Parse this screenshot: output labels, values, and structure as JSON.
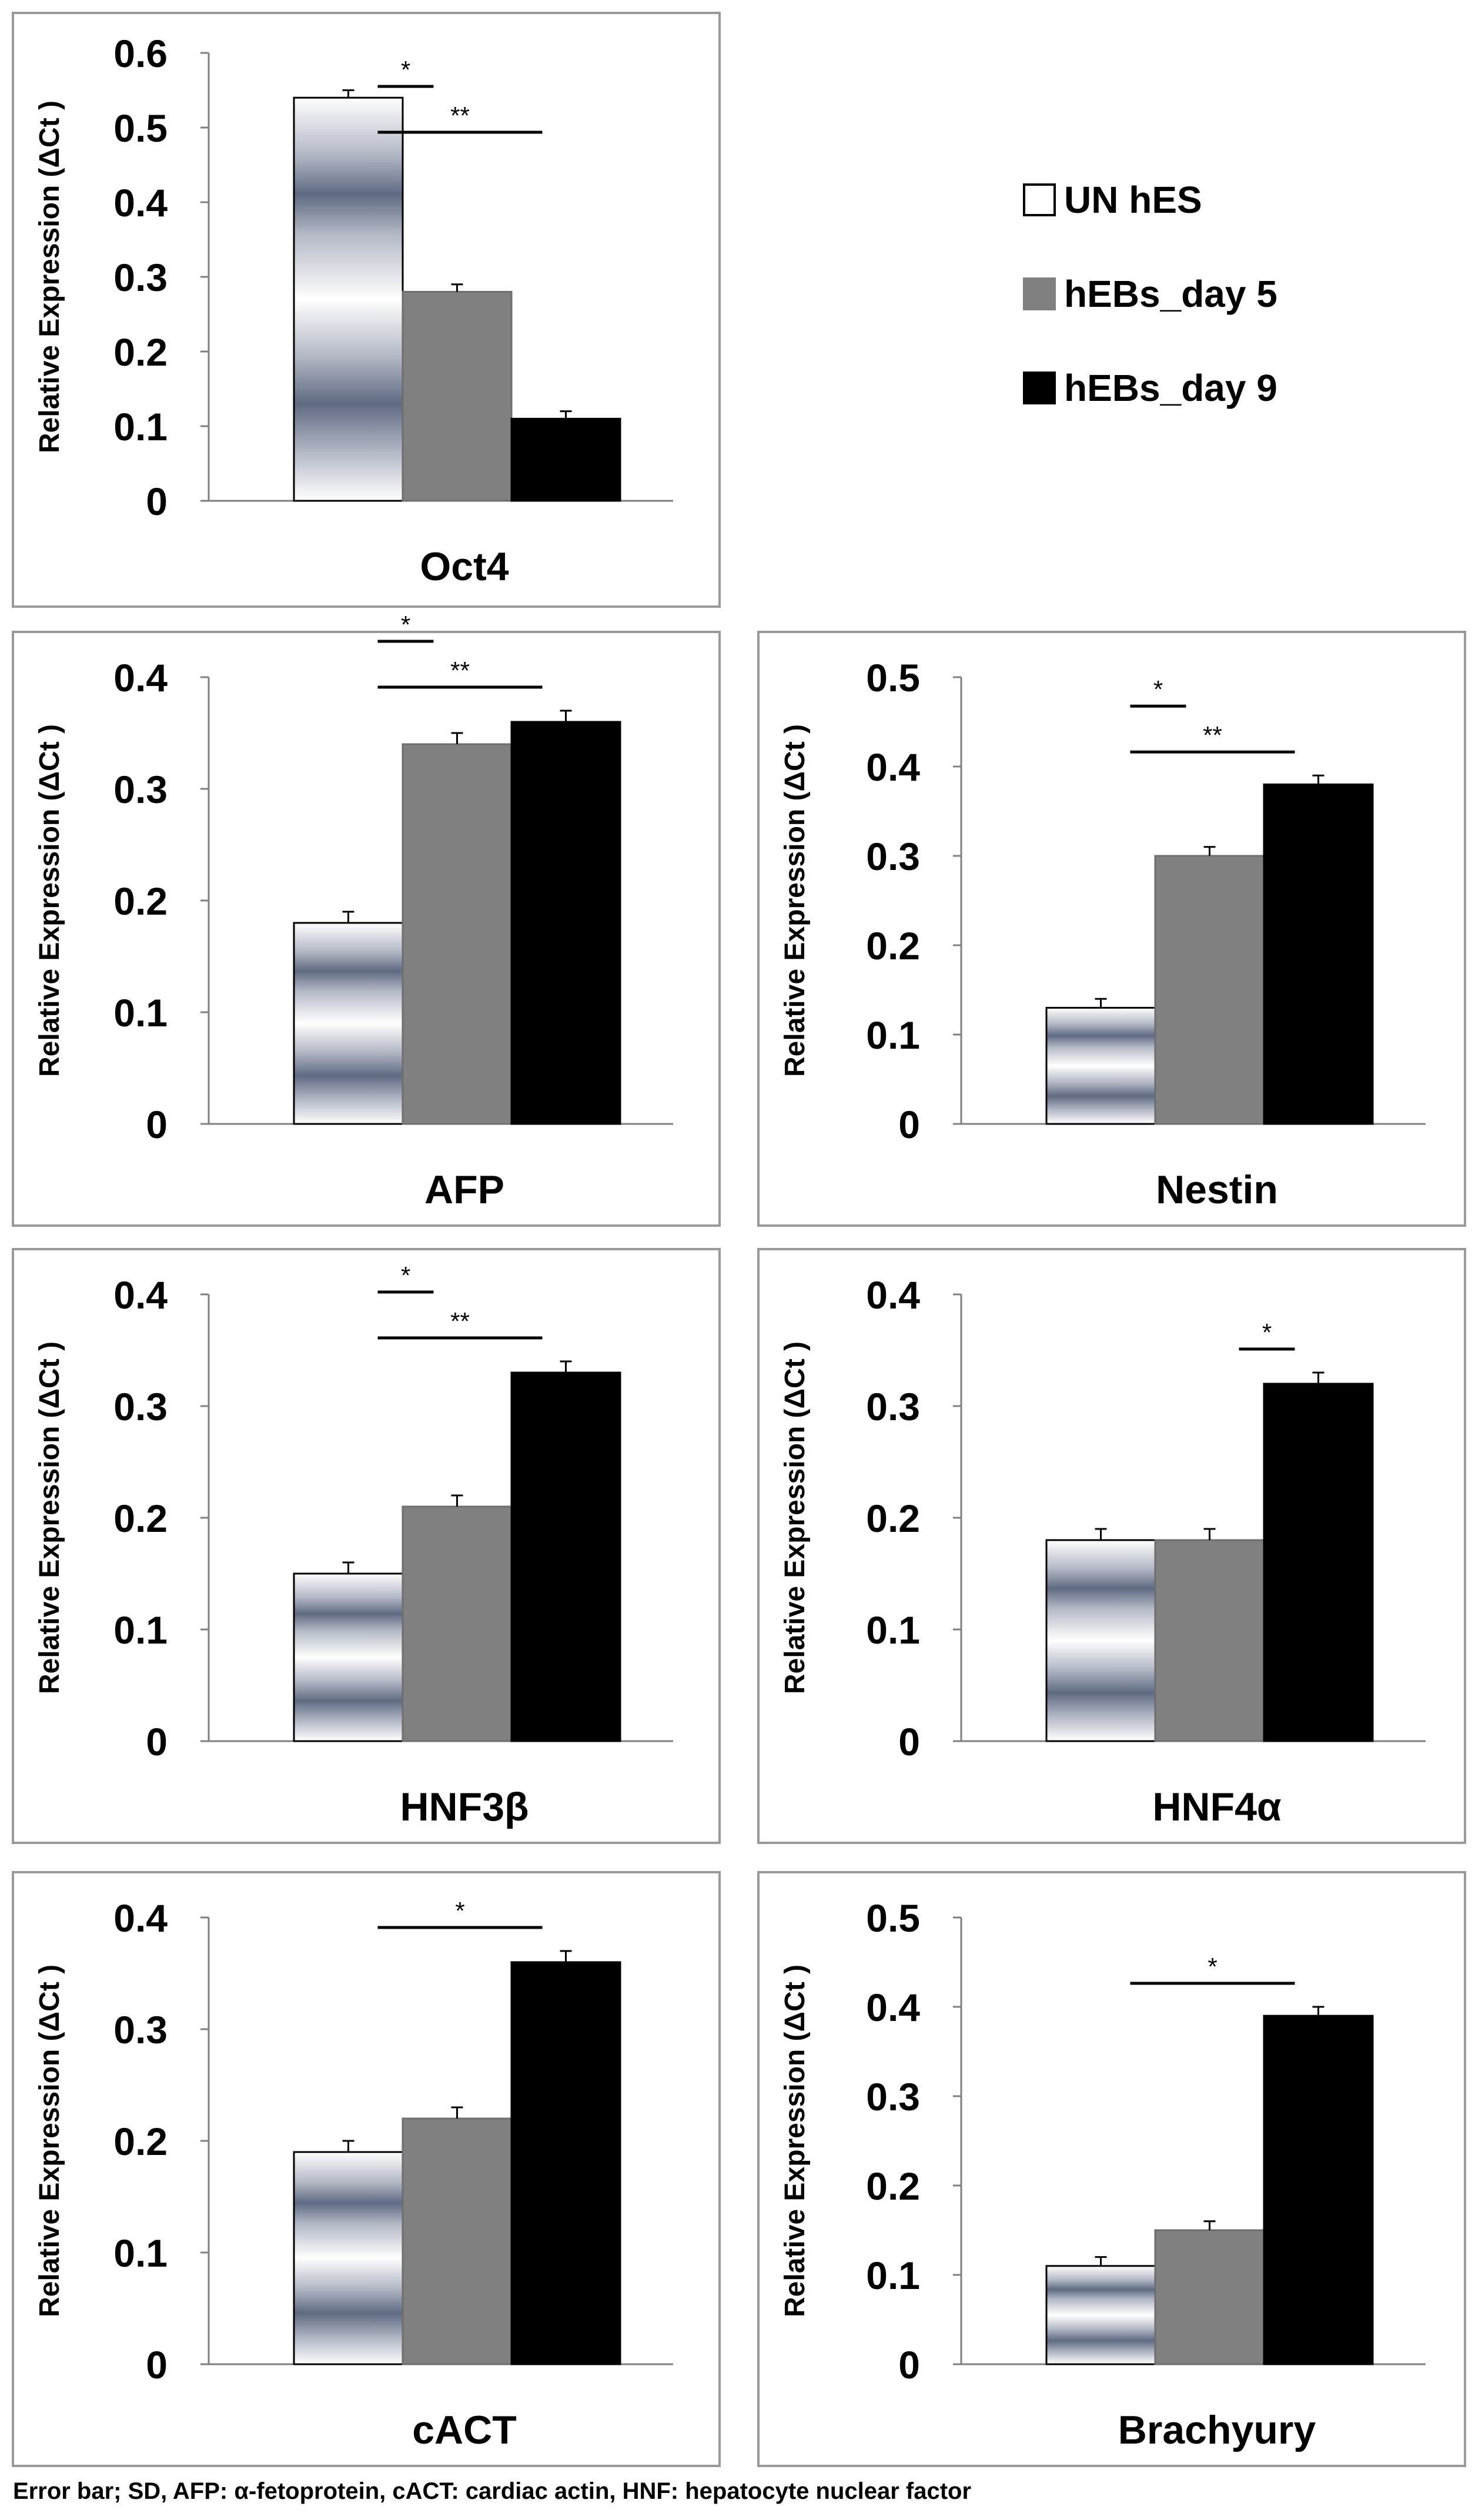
{
  "legend": {
    "items": [
      {
        "label": "UN hES",
        "color": "#ffffff",
        "swatch": "white-box"
      },
      {
        "label": "hEBs_day 5",
        "color": "#808080",
        "swatch": "gray-box"
      },
      {
        "label": "hEBs_day 9",
        "color": "#000000",
        "swatch": "black-box"
      }
    ]
  },
  "footnote": "Error bar; SD, AFP: α-fetoprotein, cACT: cardiac actin, HNF: hepatocyte nuclear factor",
  "chart_data": [
    {
      "type": "bar",
      "title": "Oct4",
      "ylabel": "Relative Expression (ΔCt )",
      "ylim": [
        0,
        0.6
      ],
      "yticks": [
        "0",
        "0.1",
        "0.2",
        "0.3",
        "0.4",
        "0.5",
        "0.6"
      ],
      "series": [
        {
          "name": "UN hES",
          "values": [
            0.54
          ],
          "errors": [
            0.01
          ]
        },
        {
          "name": "hEBs_day 5",
          "values": [
            0.28
          ],
          "errors": [
            0.01
          ]
        },
        {
          "name": "hEBs_day 9",
          "values": [
            0.11
          ],
          "errors": [
            0.01
          ]
        }
      ],
      "significance": [
        {
          "from": 0,
          "to": 1,
          "label": "*"
        },
        {
          "from": 0,
          "to": 2,
          "label": "**"
        }
      ]
    },
    {
      "type": "bar",
      "title": "AFP",
      "ylabel": "Relative Expression (ΔCt )",
      "ylim": [
        0,
        0.4
      ],
      "yticks": [
        "0",
        "0.1",
        "0.2",
        "0.3",
        "0.4"
      ],
      "series": [
        {
          "name": "UN hES",
          "values": [
            0.18
          ],
          "errors": [
            0.01
          ]
        },
        {
          "name": "hEBs_day 5",
          "values": [
            0.34
          ],
          "errors": [
            0.01
          ]
        },
        {
          "name": "hEBs_day 9",
          "values": [
            0.36
          ],
          "errors": [
            0.01
          ]
        }
      ],
      "significance": [
        {
          "from": 0,
          "to": 1,
          "label": "*"
        },
        {
          "from": 0,
          "to": 2,
          "label": "**"
        }
      ]
    },
    {
      "type": "bar",
      "title": "Nestin",
      "ylabel": "Relative Expression (ΔCt )",
      "ylim": [
        0,
        0.5
      ],
      "yticks": [
        "0",
        "0.1",
        "0.2",
        "0.3",
        "0.4",
        "0.5"
      ],
      "series": [
        {
          "name": "UN hES",
          "values": [
            0.13
          ],
          "errors": [
            0.01
          ]
        },
        {
          "name": "hEBs_day 5",
          "values": [
            0.3
          ],
          "errors": [
            0.01
          ]
        },
        {
          "name": "hEBs_day 9",
          "values": [
            0.38
          ],
          "errors": [
            0.01
          ]
        }
      ],
      "significance": [
        {
          "from": 0,
          "to": 1,
          "label": "*"
        },
        {
          "from": 0,
          "to": 2,
          "label": "**"
        }
      ]
    },
    {
      "type": "bar",
      "title": "HNF3β",
      "ylabel": "Relative Expression (ΔCt )",
      "ylim": [
        0,
        0.4
      ],
      "yticks": [
        "0",
        "0.1",
        "0.2",
        "0.3",
        "0.4"
      ],
      "series": [
        {
          "name": "UN hES",
          "values": [
            0.15
          ],
          "errors": [
            0.01
          ]
        },
        {
          "name": "hEBs_day 5",
          "values": [
            0.21
          ],
          "errors": [
            0.01
          ]
        },
        {
          "name": "hEBs_day 9",
          "values": [
            0.33
          ],
          "errors": [
            0.01
          ]
        }
      ],
      "significance": [
        {
          "from": 0,
          "to": 1,
          "label": "*"
        },
        {
          "from": 0,
          "to": 2,
          "label": "**"
        }
      ]
    },
    {
      "type": "bar",
      "title": "HNF4α",
      "ylabel": "Relative Expression (ΔCt )",
      "ylim": [
        0,
        0.4
      ],
      "yticks": [
        "0",
        "0.1",
        "0.2",
        "0.3",
        "0.4"
      ],
      "series": [
        {
          "name": "UN hES",
          "values": [
            0.18
          ],
          "errors": [
            0.01
          ]
        },
        {
          "name": "hEBs_day 5",
          "values": [
            0.18
          ],
          "errors": [
            0.01
          ]
        },
        {
          "name": "hEBs_day 9",
          "values": [
            0.32
          ],
          "errors": [
            0.01
          ]
        }
      ],
      "significance": [
        {
          "from": 1,
          "to": 2,
          "label": "*"
        }
      ]
    },
    {
      "type": "bar",
      "title": "cACT",
      "ylabel": "Relative Expression (ΔCt )",
      "ylim": [
        0,
        0.4
      ],
      "yticks": [
        "0",
        "0.1",
        "0.2",
        "0.3",
        "0.4"
      ],
      "series": [
        {
          "name": "UN hES",
          "values": [
            0.19
          ],
          "errors": [
            0.01
          ]
        },
        {
          "name": "hEBs_day 5",
          "values": [
            0.22
          ],
          "errors": [
            0.01
          ]
        },
        {
          "name": "hEBs_day 9",
          "values": [
            0.36
          ],
          "errors": [
            0.01
          ]
        }
      ],
      "significance": [
        {
          "from": 0,
          "to": 2,
          "label": "*"
        }
      ]
    },
    {
      "type": "bar",
      "title": "Brachyury",
      "ylabel": "Relative Expression (ΔCt )",
      "ylim": [
        0,
        0.5
      ],
      "yticks": [
        "0",
        "0.1",
        "0.2",
        "0.3",
        "0.4",
        "0.5"
      ],
      "series": [
        {
          "name": "UN hES",
          "values": [
            0.11
          ],
          "errors": [
            0.01
          ]
        },
        {
          "name": "hEBs_day 5",
          "values": [
            0.15
          ],
          "errors": [
            0.01
          ]
        },
        {
          "name": "hEBs_day 9",
          "values": [
            0.39
          ],
          "errors": [
            0.01
          ]
        }
      ],
      "significance": [
        {
          "from": 0,
          "to": 2,
          "label": "*"
        }
      ]
    }
  ]
}
